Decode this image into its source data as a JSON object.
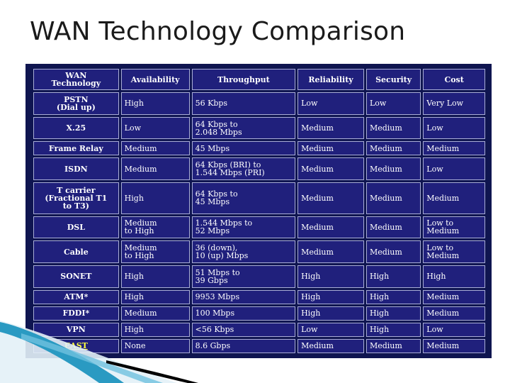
{
  "title": "WAN Technology Comparison",
  "colors": {
    "table_background": "#0f1550",
    "cell_background": "#20207c",
    "cell_text": "#ffffff",
    "highlight_text": "#ffff40",
    "swoosh": "#2a9ac2"
  },
  "table": {
    "headers": [
      [
        "WAN",
        "Technology"
      ],
      [
        "Availability"
      ],
      [
        "Throughput"
      ],
      [
        "Reliability"
      ],
      [
        "Security"
      ],
      [
        "Cost"
      ]
    ],
    "rows": [
      {
        "tech": [
          "PSTN",
          "(Dial up)"
        ],
        "availability": [
          "High"
        ],
        "throughput": [
          "56 Kbps"
        ],
        "reliability": [
          "Low"
        ],
        "security": [
          "Low"
        ],
        "cost": [
          "Very Low"
        ]
      },
      {
        "tech": [
          "X.25"
        ],
        "availability": [
          "Low"
        ],
        "throughput": [
          "64 Kbps to",
          "2.048 Mbps"
        ],
        "reliability": [
          "Medium"
        ],
        "security": [
          "Medium"
        ],
        "cost": [
          "Low"
        ]
      },
      {
        "tech": [
          "Frame Relay"
        ],
        "availability": [
          "Medium"
        ],
        "throughput": [
          "45 Mbps"
        ],
        "reliability": [
          "Medium"
        ],
        "security": [
          "Medium"
        ],
        "cost": [
          "Medium"
        ]
      },
      {
        "tech": [
          "ISDN"
        ],
        "availability": [
          "Medium"
        ],
        "throughput": [
          "64 Kbps (BRI) to",
          "1.544 Mbps (PRI)"
        ],
        "reliability": [
          "Medium"
        ],
        "security": [
          "Medium"
        ],
        "cost": [
          "Low"
        ]
      },
      {
        "tech": [
          "T carrier",
          "(Fractional T1",
          "to T3)"
        ],
        "availability": [
          "High"
        ],
        "throughput": [
          "64 Kbps to",
          "45 Mbps"
        ],
        "reliability": [
          "Medium"
        ],
        "security": [
          "Medium"
        ],
        "cost": [
          "Medium"
        ]
      },
      {
        "tech": [
          "DSL"
        ],
        "availability": [
          "Medium",
          "to High"
        ],
        "throughput": [
          "1.544 Mbps to",
          "52 Mbps"
        ],
        "reliability": [
          "Medium"
        ],
        "security": [
          "Medium"
        ],
        "cost": [
          "Low to",
          "Medium"
        ]
      },
      {
        "tech": [
          "Cable"
        ],
        "availability": [
          "Medium",
          "to High"
        ],
        "throughput": [
          "36 (down),",
          "10 (up) Mbps"
        ],
        "reliability": [
          "Medium"
        ],
        "security": [
          "Medium"
        ],
        "cost": [
          "Low to",
          "Medium"
        ]
      },
      {
        "tech": [
          "SONET"
        ],
        "availability": [
          "High"
        ],
        "throughput": [
          "51 Mbps to",
          "39 Gbps"
        ],
        "reliability": [
          "High"
        ],
        "security": [
          "High"
        ],
        "cost": [
          "High"
        ]
      },
      {
        "tech": [
          "ATM*"
        ],
        "availability": [
          "High"
        ],
        "throughput": [
          "9953 Mbps"
        ],
        "reliability": [
          "High"
        ],
        "security": [
          "High"
        ],
        "cost": [
          "Medium"
        ]
      },
      {
        "tech": [
          "FDDI*"
        ],
        "availability": [
          "Medium"
        ],
        "throughput": [
          "100 Mbps"
        ],
        "reliability": [
          "High"
        ],
        "security": [
          "High"
        ],
        "cost": [
          "Medium"
        ]
      },
      {
        "tech": [
          "VPN"
        ],
        "availability": [
          "High"
        ],
        "throughput": [
          "<56 Kbps"
        ],
        "reliability": [
          "Low"
        ],
        "security": [
          "High"
        ],
        "cost": [
          "Low"
        ]
      },
      {
        "tech": [
          "EAST"
        ],
        "availability": [
          "None"
        ],
        "throughput": [
          "8.6 Gbps"
        ],
        "reliability": [
          "Medium"
        ],
        "security": [
          "Medium"
        ],
        "cost": [
          "Medium"
        ],
        "highlight": true
      }
    ]
  }
}
